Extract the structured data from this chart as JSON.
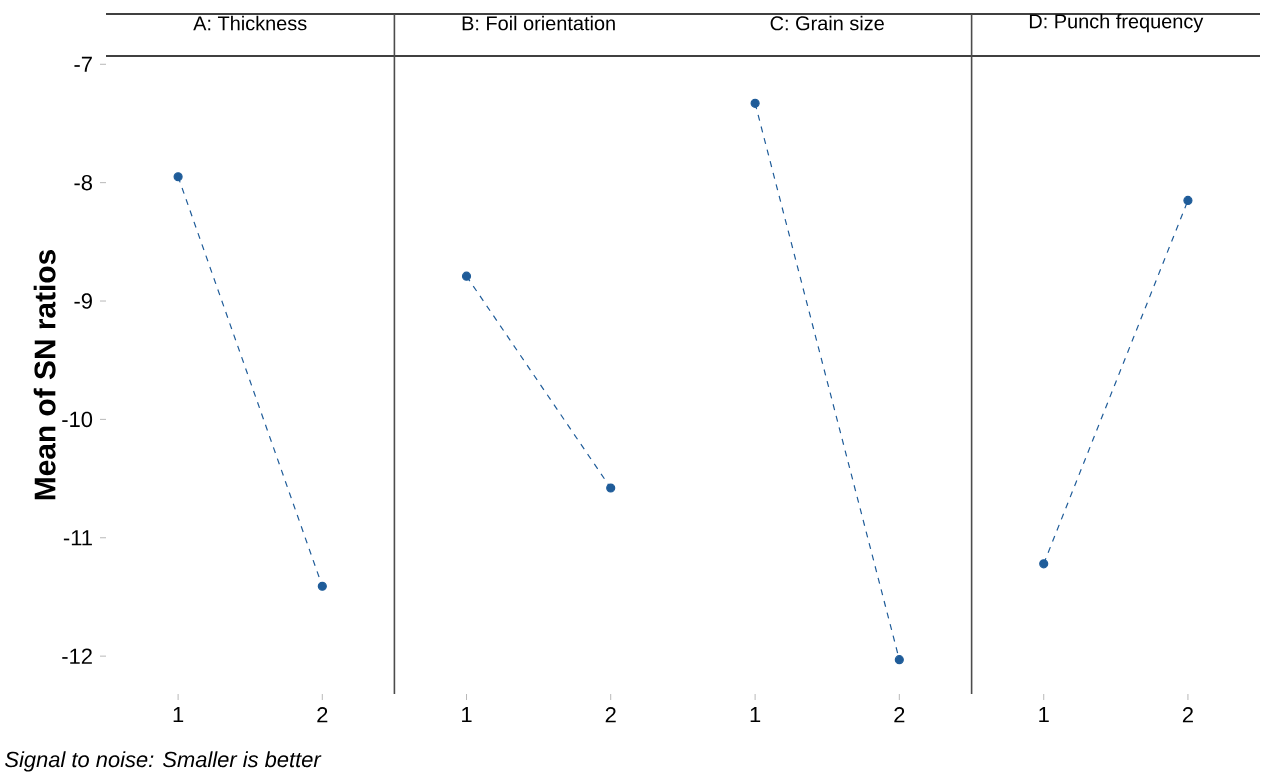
{
  "chart_data": [
    {
      "type": "line",
      "title": "A: Thickness",
      "ylabel": "Mean of SN ratios",
      "categories": [
        "1",
        "2"
      ],
      "values": [
        -7.95,
        -11.41
      ],
      "color": "#1f5c99",
      "marker": "circle",
      "line_style": "dashed",
      "ylim": [
        -12.32,
        -6.93
      ],
      "yticks": [
        -12,
        -11,
        -10,
        -9,
        -8,
        -7
      ],
      "annotations": [
        "Signal to noise: Smaller is better"
      ]
    },
    {
      "type": "line",
      "title": "B: Foil orientation",
      "categories": [
        "1",
        "2"
      ],
      "values": [
        -8.79,
        -10.58
      ],
      "color": "#1f5c99",
      "marker": "circle",
      "line_style": "dashed",
      "ylim": [
        -12.32,
        -6.93
      ],
      "tick_labels": "x"
    },
    {
      "type": "line",
      "title": "C: Grain size",
      "categories": [
        "1",
        "2"
      ],
      "values": [
        -7.33,
        -12.03
      ],
      "color": "#1f5c99",
      "marker": "circle",
      "line_style": "dashed",
      "ylim": [
        -12.32,
        -6.93
      ],
      "tick_labels": "x"
    },
    {
      "type": "line",
      "title": "D: Punch frequency",
      "categories": [
        "1",
        "2"
      ],
      "values": [
        -11.22,
        -8.15
      ],
      "color": "#1f5c99",
      "marker": "circle",
      "line_style": "dashed",
      "ylim": [
        -12.32,
        -6.93
      ],
      "tick_labels": "x"
    }
  ]
}
